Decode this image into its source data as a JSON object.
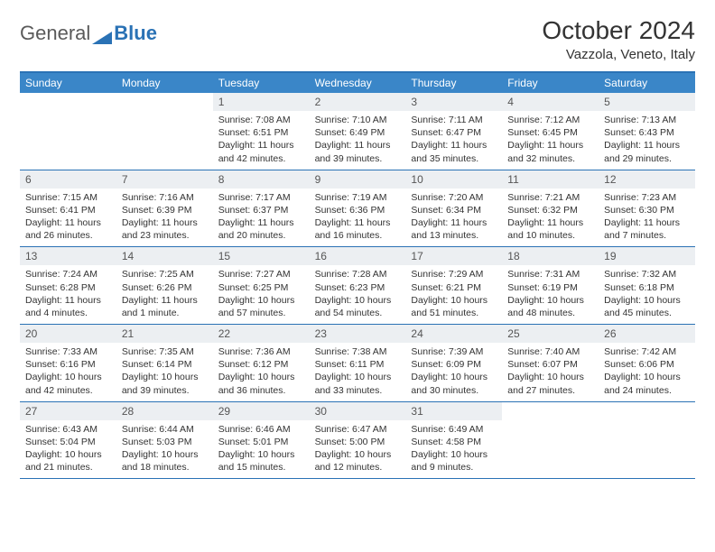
{
  "brand": {
    "part1": "General",
    "part2": "Blue"
  },
  "title": "October 2024",
  "location": "Vazzola, Veneto, Italy",
  "colors": {
    "header_bg": "#3a86c8",
    "border": "#2a72b5",
    "daynum_bg": "#eceff2",
    "text": "#333333",
    "white": "#ffffff"
  },
  "day_names": [
    "Sunday",
    "Monday",
    "Tuesday",
    "Wednesday",
    "Thursday",
    "Friday",
    "Saturday"
  ],
  "weeks": [
    [
      {
        "n": "",
        "sr": "",
        "ss": "",
        "dl": ""
      },
      {
        "n": "",
        "sr": "",
        "ss": "",
        "dl": ""
      },
      {
        "n": "1",
        "sr": "Sunrise: 7:08 AM",
        "ss": "Sunset: 6:51 PM",
        "dl": "Daylight: 11 hours and 42 minutes."
      },
      {
        "n": "2",
        "sr": "Sunrise: 7:10 AM",
        "ss": "Sunset: 6:49 PM",
        "dl": "Daylight: 11 hours and 39 minutes."
      },
      {
        "n": "3",
        "sr": "Sunrise: 7:11 AM",
        "ss": "Sunset: 6:47 PM",
        "dl": "Daylight: 11 hours and 35 minutes."
      },
      {
        "n": "4",
        "sr": "Sunrise: 7:12 AM",
        "ss": "Sunset: 6:45 PM",
        "dl": "Daylight: 11 hours and 32 minutes."
      },
      {
        "n": "5",
        "sr": "Sunrise: 7:13 AM",
        "ss": "Sunset: 6:43 PM",
        "dl": "Daylight: 11 hours and 29 minutes."
      }
    ],
    [
      {
        "n": "6",
        "sr": "Sunrise: 7:15 AM",
        "ss": "Sunset: 6:41 PM",
        "dl": "Daylight: 11 hours and 26 minutes."
      },
      {
        "n": "7",
        "sr": "Sunrise: 7:16 AM",
        "ss": "Sunset: 6:39 PM",
        "dl": "Daylight: 11 hours and 23 minutes."
      },
      {
        "n": "8",
        "sr": "Sunrise: 7:17 AM",
        "ss": "Sunset: 6:37 PM",
        "dl": "Daylight: 11 hours and 20 minutes."
      },
      {
        "n": "9",
        "sr": "Sunrise: 7:19 AM",
        "ss": "Sunset: 6:36 PM",
        "dl": "Daylight: 11 hours and 16 minutes."
      },
      {
        "n": "10",
        "sr": "Sunrise: 7:20 AM",
        "ss": "Sunset: 6:34 PM",
        "dl": "Daylight: 11 hours and 13 minutes."
      },
      {
        "n": "11",
        "sr": "Sunrise: 7:21 AM",
        "ss": "Sunset: 6:32 PM",
        "dl": "Daylight: 11 hours and 10 minutes."
      },
      {
        "n": "12",
        "sr": "Sunrise: 7:23 AM",
        "ss": "Sunset: 6:30 PM",
        "dl": "Daylight: 11 hours and 7 minutes."
      }
    ],
    [
      {
        "n": "13",
        "sr": "Sunrise: 7:24 AM",
        "ss": "Sunset: 6:28 PM",
        "dl": "Daylight: 11 hours and 4 minutes."
      },
      {
        "n": "14",
        "sr": "Sunrise: 7:25 AM",
        "ss": "Sunset: 6:26 PM",
        "dl": "Daylight: 11 hours and 1 minute."
      },
      {
        "n": "15",
        "sr": "Sunrise: 7:27 AM",
        "ss": "Sunset: 6:25 PM",
        "dl": "Daylight: 10 hours and 57 minutes."
      },
      {
        "n": "16",
        "sr": "Sunrise: 7:28 AM",
        "ss": "Sunset: 6:23 PM",
        "dl": "Daylight: 10 hours and 54 minutes."
      },
      {
        "n": "17",
        "sr": "Sunrise: 7:29 AM",
        "ss": "Sunset: 6:21 PM",
        "dl": "Daylight: 10 hours and 51 minutes."
      },
      {
        "n": "18",
        "sr": "Sunrise: 7:31 AM",
        "ss": "Sunset: 6:19 PM",
        "dl": "Daylight: 10 hours and 48 minutes."
      },
      {
        "n": "19",
        "sr": "Sunrise: 7:32 AM",
        "ss": "Sunset: 6:18 PM",
        "dl": "Daylight: 10 hours and 45 minutes."
      }
    ],
    [
      {
        "n": "20",
        "sr": "Sunrise: 7:33 AM",
        "ss": "Sunset: 6:16 PM",
        "dl": "Daylight: 10 hours and 42 minutes."
      },
      {
        "n": "21",
        "sr": "Sunrise: 7:35 AM",
        "ss": "Sunset: 6:14 PM",
        "dl": "Daylight: 10 hours and 39 minutes."
      },
      {
        "n": "22",
        "sr": "Sunrise: 7:36 AM",
        "ss": "Sunset: 6:12 PM",
        "dl": "Daylight: 10 hours and 36 minutes."
      },
      {
        "n": "23",
        "sr": "Sunrise: 7:38 AM",
        "ss": "Sunset: 6:11 PM",
        "dl": "Daylight: 10 hours and 33 minutes."
      },
      {
        "n": "24",
        "sr": "Sunrise: 7:39 AM",
        "ss": "Sunset: 6:09 PM",
        "dl": "Daylight: 10 hours and 30 minutes."
      },
      {
        "n": "25",
        "sr": "Sunrise: 7:40 AM",
        "ss": "Sunset: 6:07 PM",
        "dl": "Daylight: 10 hours and 27 minutes."
      },
      {
        "n": "26",
        "sr": "Sunrise: 7:42 AM",
        "ss": "Sunset: 6:06 PM",
        "dl": "Daylight: 10 hours and 24 minutes."
      }
    ],
    [
      {
        "n": "27",
        "sr": "Sunrise: 6:43 AM",
        "ss": "Sunset: 5:04 PM",
        "dl": "Daylight: 10 hours and 21 minutes."
      },
      {
        "n": "28",
        "sr": "Sunrise: 6:44 AM",
        "ss": "Sunset: 5:03 PM",
        "dl": "Daylight: 10 hours and 18 minutes."
      },
      {
        "n": "29",
        "sr": "Sunrise: 6:46 AM",
        "ss": "Sunset: 5:01 PM",
        "dl": "Daylight: 10 hours and 15 minutes."
      },
      {
        "n": "30",
        "sr": "Sunrise: 6:47 AM",
        "ss": "Sunset: 5:00 PM",
        "dl": "Daylight: 10 hours and 12 minutes."
      },
      {
        "n": "31",
        "sr": "Sunrise: 6:49 AM",
        "ss": "Sunset: 4:58 PM",
        "dl": "Daylight: 10 hours and 9 minutes."
      },
      {
        "n": "",
        "sr": "",
        "ss": "",
        "dl": ""
      },
      {
        "n": "",
        "sr": "",
        "ss": "",
        "dl": ""
      }
    ]
  ]
}
